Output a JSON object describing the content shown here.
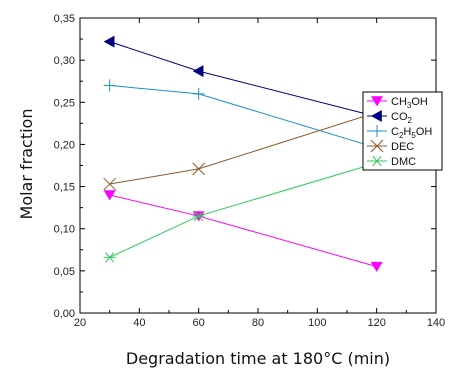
{
  "chart_data": {
    "type": "line",
    "xlabel": "Degradation time at 180°C (min)",
    "ylabel": "Molar fraction",
    "xlim": [
      20,
      140
    ],
    "ylim": [
      0.0,
      0.35
    ],
    "xticks": [
      20,
      40,
      60,
      80,
      100,
      120,
      140
    ],
    "yticks": [
      0.0,
      0.05,
      0.1,
      0.15,
      0.2,
      0.25,
      0.3,
      0.35
    ],
    "xtick_labels": [
      "20",
      "40",
      "60",
      "80",
      "100",
      "120",
      "140"
    ],
    "ytick_labels": [
      "0,00",
      "0,05",
      "0,10",
      "0,15",
      "0,20",
      "0,25",
      "0,30",
      "0,35"
    ],
    "grid": false,
    "legend_position": "right",
    "series": [
      {
        "name": "CH3OH",
        "label_main": "CH",
        "label_sub": "3",
        "label_rest": "OH",
        "color": "#ff00ff",
        "marker": "triangle-down",
        "x": [
          30,
          60,
          120
        ],
        "y": [
          0.14,
          0.115,
          0.055
        ]
      },
      {
        "name": "CO2",
        "label_main": "CO",
        "label_sub": "2",
        "label_rest": "",
        "color": "#000080",
        "marker": "triangle-left",
        "x": [
          30,
          60,
          120
        ],
        "y": [
          0.322,
          0.287,
          0.233
        ]
      },
      {
        "name": "C2H5OH",
        "label_main": "C",
        "label_sub": "2",
        "label_rest": "H",
        "label_sub2": "5",
        "label_rest2": "OH",
        "color": "#1e90c8",
        "marker": "plus",
        "x": [
          30,
          60,
          120
        ],
        "y": [
          0.27,
          0.26,
          0.196
        ]
      },
      {
        "name": "DEC",
        "label_main": "DEC",
        "label_sub": "",
        "label_rest": "",
        "color": "#8b5a2b",
        "marker": "x",
        "x": [
          30,
          60,
          120
        ],
        "y": [
          0.153,
          0.171,
          0.238
        ]
      },
      {
        "name": "DMC",
        "label_main": "DMC",
        "label_sub": "",
        "label_rest": "",
        "color": "#2ecc55",
        "marker": "asterisk",
        "x": [
          30,
          60,
          120
        ],
        "y": [
          0.066,
          0.115,
          0.178
        ]
      }
    ]
  }
}
